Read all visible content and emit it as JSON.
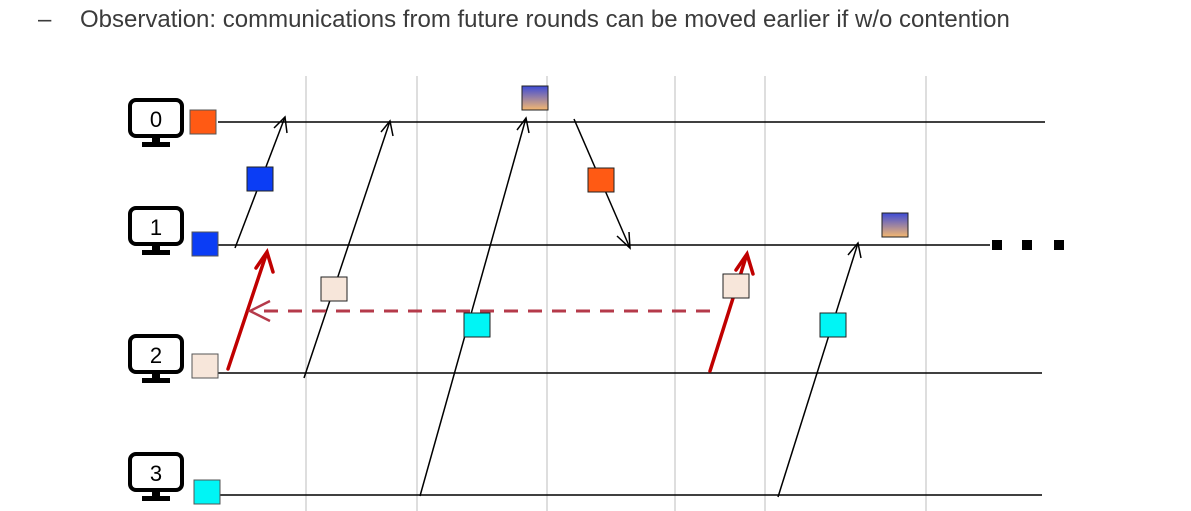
{
  "bullet": {
    "dash": "–",
    "text": "Observation: communications from future rounds can be moved earlier if w/o contention"
  },
  "nodes": [
    {
      "label": "0",
      "color": "#ff5a14"
    },
    {
      "label": "1",
      "color": "#0b3df5"
    },
    {
      "label": "2",
      "color": "#f7e6da"
    },
    {
      "label": "3",
      "color": "#00f5f5"
    }
  ],
  "colors": {
    "round_gradient_top": "#3d4bd6",
    "round_gradient_bottom": "#f5b870",
    "highlight_arrow": "#c00000",
    "dashed_arrow": "#b53a4a",
    "grid": "#c8c8c8"
  },
  "icons": [
    "computer-icon"
  ],
  "ellipsis": "continuation-dots"
}
